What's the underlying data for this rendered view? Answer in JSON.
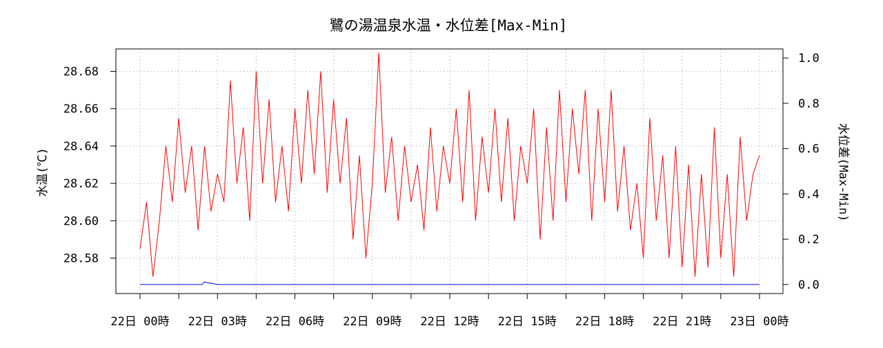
{
  "chart_data": {
    "type": "line",
    "title": "鷺の湯温泉水温・水位差[Max-Min]",
    "ylabel_left": "水温(℃)",
    "ylabel_right": "水位差(Max-Min)",
    "x_ticks": [
      "22日 00時",
      "22日 03時",
      "22日 06時",
      "22日 09時",
      "22日 12時",
      "22日 15時",
      "22日 18時",
      "22日 21時",
      "23日 00時"
    ],
    "x_range_hours": [
      0,
      24
    ],
    "ylim_left": [
      28.561,
      28.692
    ],
    "yticks_left": [
      "28.58",
      "28.60",
      "28.62",
      "28.64",
      "28.66",
      "28.68"
    ],
    "ylim_right": [
      -0.04,
      1.04
    ],
    "yticks_right": [
      "0.0",
      "0.2",
      "0.4",
      "0.6",
      "0.8",
      "1.0"
    ],
    "grid": true,
    "series": [
      {
        "axis": "left",
        "color": "#ff0000",
        "x_hours": [
          0.0,
          0.25,
          0.5,
          0.75,
          1.0,
          1.25,
          1.5,
          1.75,
          2.0,
          2.25,
          2.5,
          2.75,
          3.0,
          3.25,
          3.5,
          3.75,
          4.0,
          4.25,
          4.5,
          4.75,
          5.0,
          5.25,
          5.5,
          5.75,
          6.0,
          6.25,
          6.5,
          6.75,
          7.0,
          7.25,
          7.5,
          7.75,
          8.0,
          8.25,
          8.5,
          8.75,
          9.0,
          9.25,
          9.5,
          9.75,
          10.0,
          10.25,
          10.5,
          10.75,
          11.0,
          11.25,
          11.5,
          11.75,
          12.0,
          12.25,
          12.5,
          12.75,
          13.0,
          13.25,
          13.5,
          13.75,
          14.0,
          14.25,
          14.5,
          14.75,
          15.0,
          15.25,
          15.5,
          15.75,
          16.0,
          16.25,
          16.5,
          16.75,
          17.0,
          17.25,
          17.5,
          17.75,
          18.0,
          18.25,
          18.5,
          18.75,
          19.0,
          19.25,
          19.5,
          19.75,
          20.0,
          20.25,
          20.5,
          20.75,
          21.0,
          21.25,
          21.5,
          21.75,
          22.0,
          22.25,
          22.5,
          22.75,
          23.0,
          23.25,
          23.5,
          23.75,
          24.0
        ],
        "values": [
          28.585,
          28.61,
          28.57,
          28.6,
          28.64,
          28.61,
          28.655,
          28.615,
          28.64,
          28.595,
          28.64,
          28.605,
          28.625,
          28.61,
          28.675,
          28.62,
          28.65,
          28.6,
          28.68,
          28.62,
          28.665,
          28.61,
          28.64,
          28.605,
          28.66,
          28.62,
          28.67,
          28.625,
          28.68,
          28.615,
          28.665,
          28.62,
          28.655,
          28.59,
          28.635,
          28.58,
          28.62,
          28.69,
          28.615,
          28.645,
          28.6,
          28.64,
          28.61,
          28.63,
          28.595,
          28.65,
          28.605,
          28.64,
          28.62,
          28.66,
          28.61,
          28.67,
          28.6,
          28.645,
          28.615,
          28.66,
          28.61,
          28.655,
          28.6,
          28.64,
          28.62,
          28.66,
          28.59,
          28.65,
          28.6,
          28.67,
          28.61,
          28.66,
          28.625,
          28.67,
          28.6,
          28.66,
          28.61,
          28.67,
          28.605,
          28.64,
          28.595,
          28.62,
          28.58,
          28.655,
          28.6,
          28.635,
          28.58,
          28.64,
          28.575,
          28.63,
          28.57,
          28.625,
          28.575,
          28.65,
          28.58,
          28.625,
          28.57,
          28.645,
          28.6,
          28.625,
          28.635
        ]
      },
      {
        "axis": "right",
        "color": "#0000ff",
        "x_hours": [
          0.0,
          2.4,
          2.5,
          2.6,
          2.8,
          3.0,
          24.0
        ],
        "values": [
          0.0,
          0.0,
          0.012,
          0.008,
          0.005,
          0.0,
          0.0
        ]
      }
    ]
  }
}
